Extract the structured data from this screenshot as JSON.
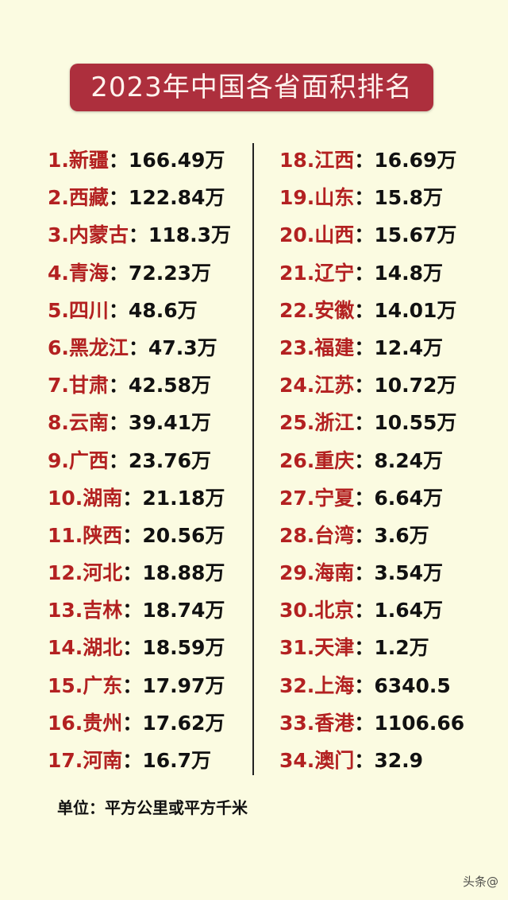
{
  "title": "2023年中国各省面积排名",
  "separator": "：",
  "left": [
    {
      "name": "1.新疆",
      "value": "166.49万"
    },
    {
      "name": "2.西藏",
      "value": "122.84万"
    },
    {
      "name": "3.内蒙古",
      "value": "118.3万"
    },
    {
      "name": "4.青海",
      "value": "72.23万"
    },
    {
      "name": "5.四川",
      "value": "48.6万"
    },
    {
      "name": "6.黑龙江",
      "value": "47.3万"
    },
    {
      "name": "7.甘肃",
      "value": "42.58万"
    },
    {
      "name": "8.云南",
      "value": "39.41万"
    },
    {
      "name": "9.广西",
      "value": "23.76万"
    },
    {
      "name": "10.湖南",
      "value": "21.18万"
    },
    {
      "name": "11.陕西",
      "value": "20.56万"
    },
    {
      "name": "12.河北",
      "value": "18.88万"
    },
    {
      "name": "13.吉林",
      "value": "18.74万"
    },
    {
      "name": "14.湖北",
      "value": "18.59万"
    },
    {
      "name": "15.广东",
      "value": "17.97万"
    },
    {
      "name": "16.贵州",
      "value": "17.62万"
    },
    {
      "name": "17.河南",
      "value": "16.7万"
    }
  ],
  "right": [
    {
      "name": "18.江西",
      "value": "16.69万"
    },
    {
      "name": "19.山东",
      "value": "15.8万"
    },
    {
      "name": "20.山西",
      "value": "15.67万"
    },
    {
      "name": "21.辽宁",
      "value": "14.8万"
    },
    {
      "name": "22.安徽",
      "value": "14.01万"
    },
    {
      "name": "23.福建",
      "value": "12.4万"
    },
    {
      "name": "24.江苏",
      "value": "10.72万"
    },
    {
      "name": "25.浙江",
      "value": "10.55万"
    },
    {
      "name": "26.重庆",
      "value": "8.24万"
    },
    {
      "name": "27.宁夏",
      "value": "6.64万"
    },
    {
      "name": "28.台湾",
      "value": "3.6万"
    },
    {
      "name": "29.海南",
      "value": "3.54万"
    },
    {
      "name": "30.北京",
      "value": "1.64万"
    },
    {
      "name": "31.天津",
      "value": "1.2万"
    },
    {
      "name": "32.上海",
      "value": "6340.5"
    },
    {
      "name": "33.香港",
      "value": "1106.66"
    },
    {
      "name": "34.澳门",
      "value": "32.9"
    }
  ],
  "unit_note": "单位：平方公里或平方千米",
  "watermark": "头条@",
  "colors": {
    "background": "#fbfbe1",
    "title_bg": "#ad2f3d",
    "name_text": "#b32121",
    "value_text": "#111111"
  }
}
